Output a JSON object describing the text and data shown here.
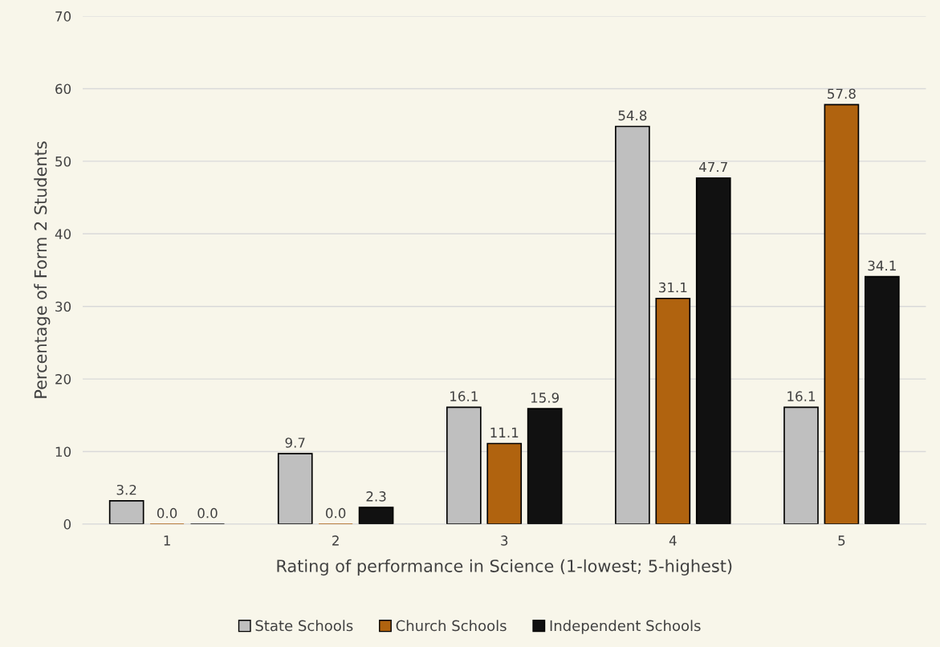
{
  "chart_data": {
    "type": "bar",
    "xlabel": "Rating of performance in Science (1-lowest; 5-highest)",
    "ylabel": "Percentage of Form 2 Students",
    "categories": [
      "1",
      "2",
      "3",
      "4",
      "5"
    ],
    "series": [
      {
        "name": "State Schools",
        "color": "#bfbfbf",
        "values": [
          3.2,
          9.7,
          16.1,
          54.8,
          16.1
        ],
        "value_labels": [
          "3.2",
          "9.7",
          "16.1",
          "54.8",
          "16.1"
        ]
      },
      {
        "name": "Church Schools",
        "color": "#b0630f",
        "values": [
          0.0,
          0.0,
          11.1,
          31.1,
          57.8
        ],
        "value_labels": [
          "0.0",
          "0.0",
          "11.1",
          "31.1",
          "57.8"
        ]
      },
      {
        "name": "Independent Schools",
        "color": "#111111",
        "values": [
          0.0,
          2.3,
          15.9,
          47.7,
          34.1
        ],
        "value_labels": [
          "0.0",
          "2.3",
          "15.9",
          "47.7",
          "34.1"
        ]
      }
    ],
    "ylim": [
      0,
      70
    ],
    "yticks": [
      0,
      10,
      20,
      30,
      40,
      50,
      60,
      70
    ],
    "grid": "y",
    "legend": "bottom"
  }
}
